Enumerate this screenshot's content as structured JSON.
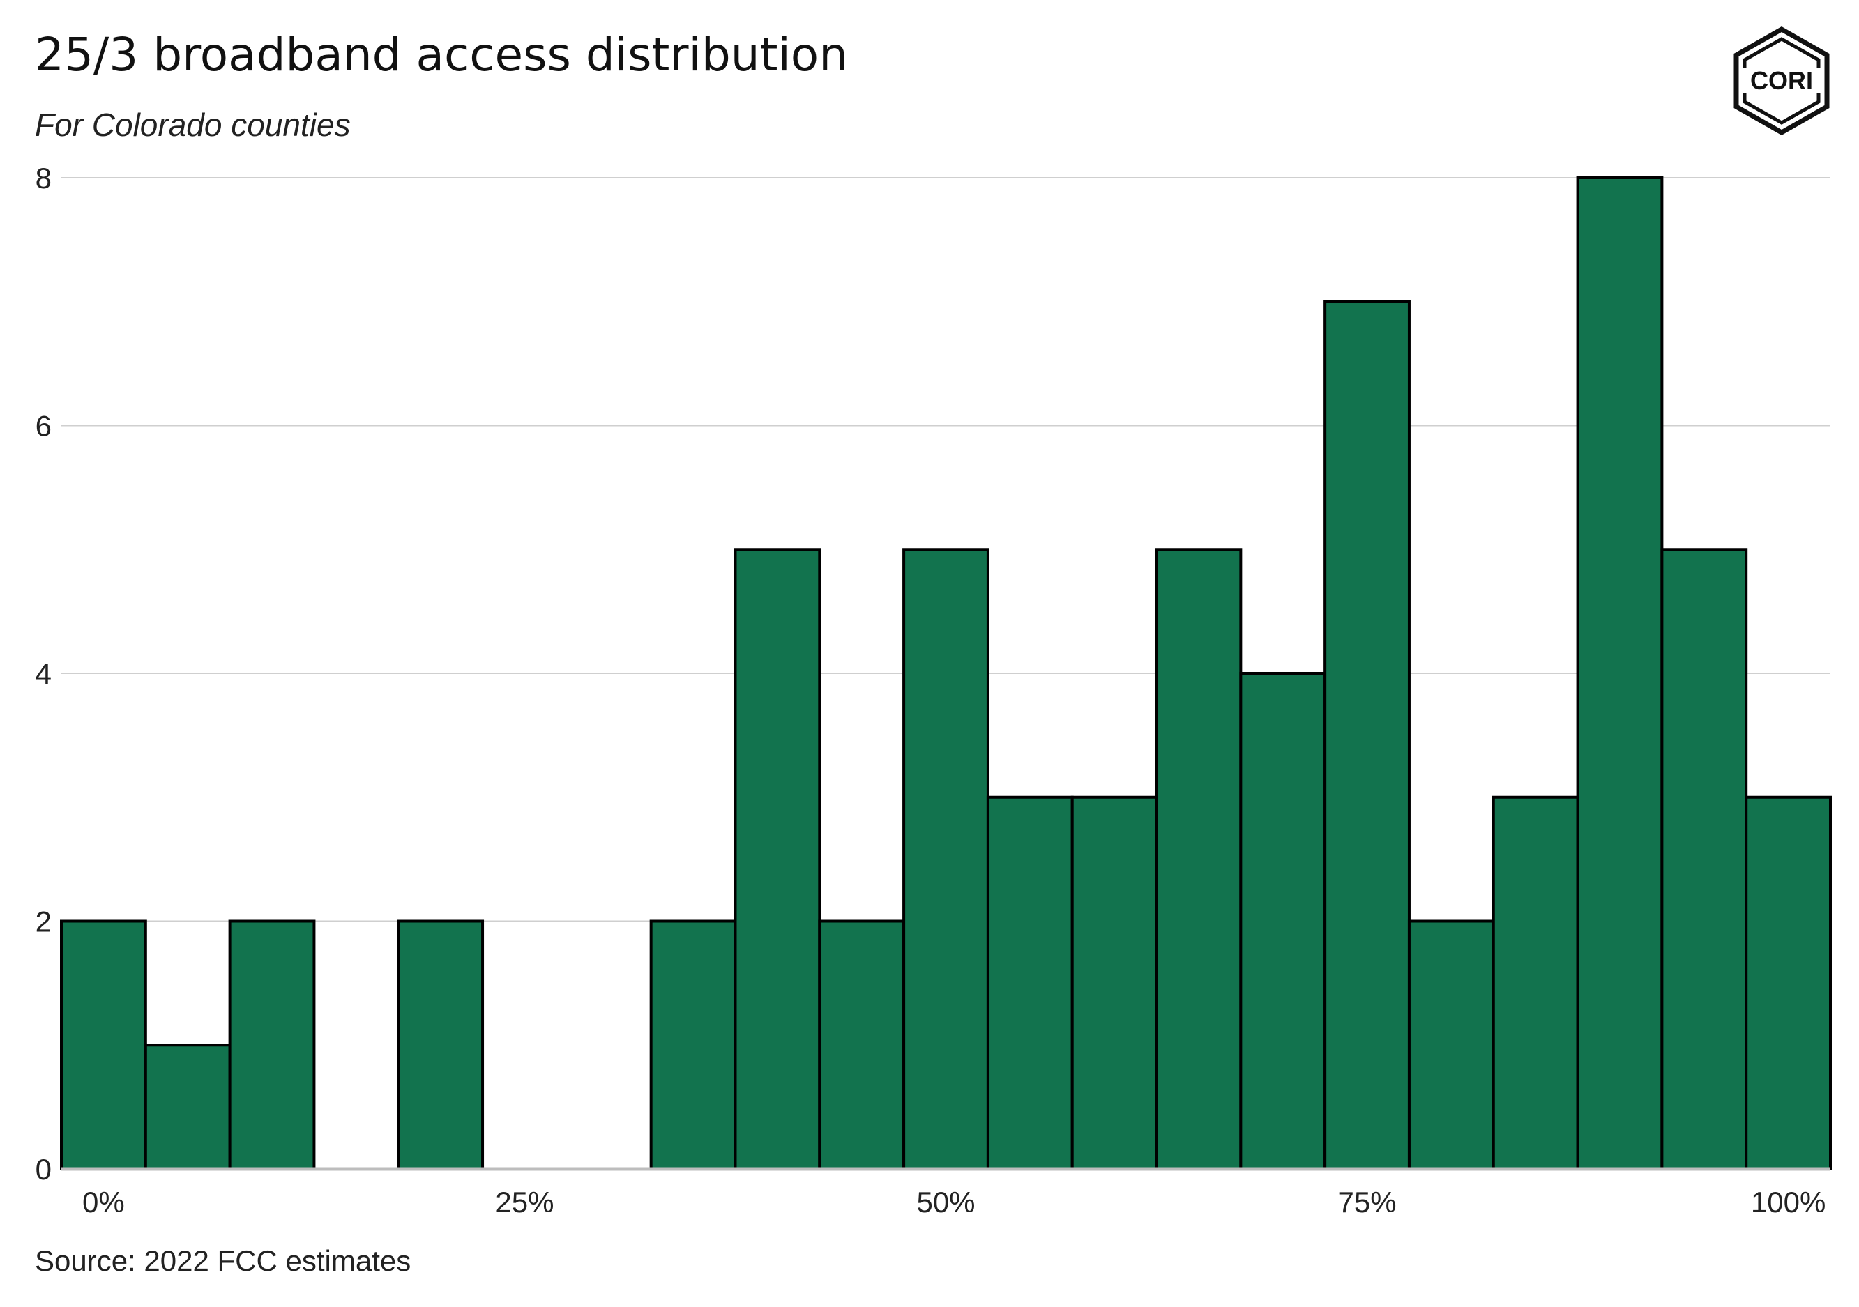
{
  "title": "25/3 broadband access distribution",
  "subtitle": "For Colorado counties",
  "caption": "Source: 2022 FCC estimates",
  "logo": {
    "text": "CORI",
    "icon": "cori-hexagon-logo-icon"
  },
  "colors": {
    "bar_fill": "#12734e",
    "bar_stroke": "#000000",
    "grid": "#cfcfcf",
    "baseline": "#bdbdbd",
    "text": "#222222"
  },
  "chart_data": {
    "type": "bar",
    "histogram": true,
    "bin_width": 5,
    "x": [
      0,
      5,
      10,
      15,
      20,
      25,
      30,
      35,
      40,
      45,
      50,
      55,
      60,
      65,
      70,
      75,
      80,
      85,
      90,
      95,
      100
    ],
    "values": [
      2,
      1,
      2,
      0,
      2,
      0,
      0,
      2,
      5,
      2,
      5,
      3,
      3,
      5,
      4,
      7,
      2,
      3,
      8,
      5,
      3
    ],
    "x_ticks": [
      0,
      25,
      50,
      75,
      100
    ],
    "x_tick_labels": [
      "0%",
      "25%",
      "50%",
      "75%",
      "100%"
    ],
    "y_ticks": [
      0,
      2,
      4,
      6,
      8
    ],
    "y_tick_labels": [
      "0",
      "2",
      "4",
      "6",
      "8"
    ],
    "xlim": [
      -2.5,
      102.5
    ],
    "ylim": [
      0,
      8
    ],
    "xlabel": "",
    "ylabel": "",
    "grid": "horizontal"
  }
}
